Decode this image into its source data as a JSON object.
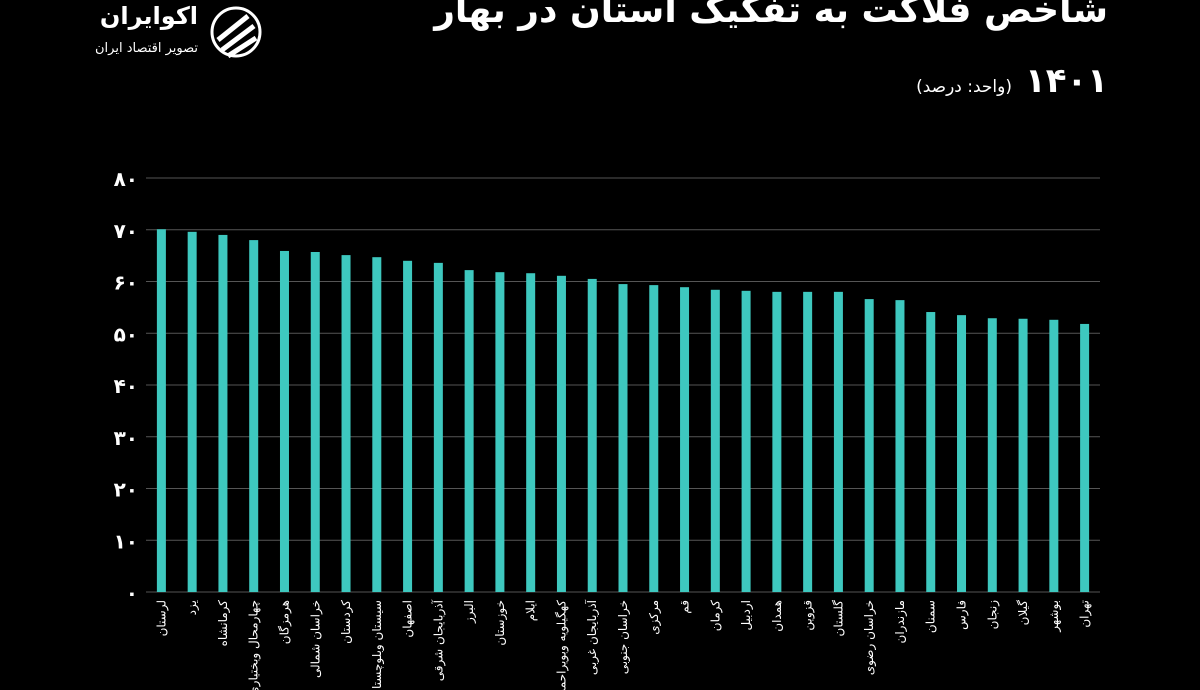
{
  "logo": {
    "name": "اکوایران",
    "tagline": "تصویر اقتصاد ایران"
  },
  "chart_data": {
    "type": "bar",
    "title": "شاخص فلاکت به تفکیک استان در بهار",
    "subtitle": "۱۴۰۱",
    "unit": "(واحد: درصد)",
    "categories": [
      "لرستان",
      "یزد",
      "کرمانشاه",
      "چهارمحال وبختیاری",
      "هرمزگان",
      "خراسان شمالی",
      "کردستان",
      "سیستان وبلوچستان",
      "اصفهان",
      "آذربایجان شرقی",
      "البرز",
      "خوزستان",
      "ایلام",
      "کهگیلویه وبویراحمد",
      "آذربایجان غربی",
      "خراسان جنوبی",
      "مرکزی",
      "قم",
      "کرمان",
      "اردبیل",
      "همدان",
      "قزوین",
      "گلستان",
      "خراسان رضوی",
      "مازندران",
      "سمنان",
      "فارس",
      "زنجان",
      "گیلان",
      "بوشهر",
      "تهران"
    ],
    "values": [
      70.1,
      69.6,
      69.0,
      68.0,
      65.9,
      65.7,
      65.1,
      64.7,
      64.0,
      63.6,
      62.2,
      61.8,
      61.6,
      61.1,
      60.5,
      59.5,
      59.3,
      58.9,
      58.4,
      58.2,
      58.0,
      58.0,
      58.0,
      56.6,
      56.4,
      54.1,
      53.5,
      52.9,
      52.8,
      52.6,
      51.8
    ],
    "color": "#3ec8bf",
    "ylim": [
      0,
      80
    ],
    "yticks": [
      {
        "value": 0,
        "label": "۰"
      },
      {
        "value": 10,
        "label": "۱۰"
      },
      {
        "value": 20,
        "label": "۲۰"
      },
      {
        "value": 30,
        "label": "۳۰"
      },
      {
        "value": 40,
        "label": "۴۰"
      },
      {
        "value": 50,
        "label": "۵۰"
      },
      {
        "value": 60,
        "label": "۶۰"
      },
      {
        "value": 70,
        "label": "۷۰"
      },
      {
        "value": 80,
        "label": "۸۰"
      }
    ],
    "grid": true
  }
}
